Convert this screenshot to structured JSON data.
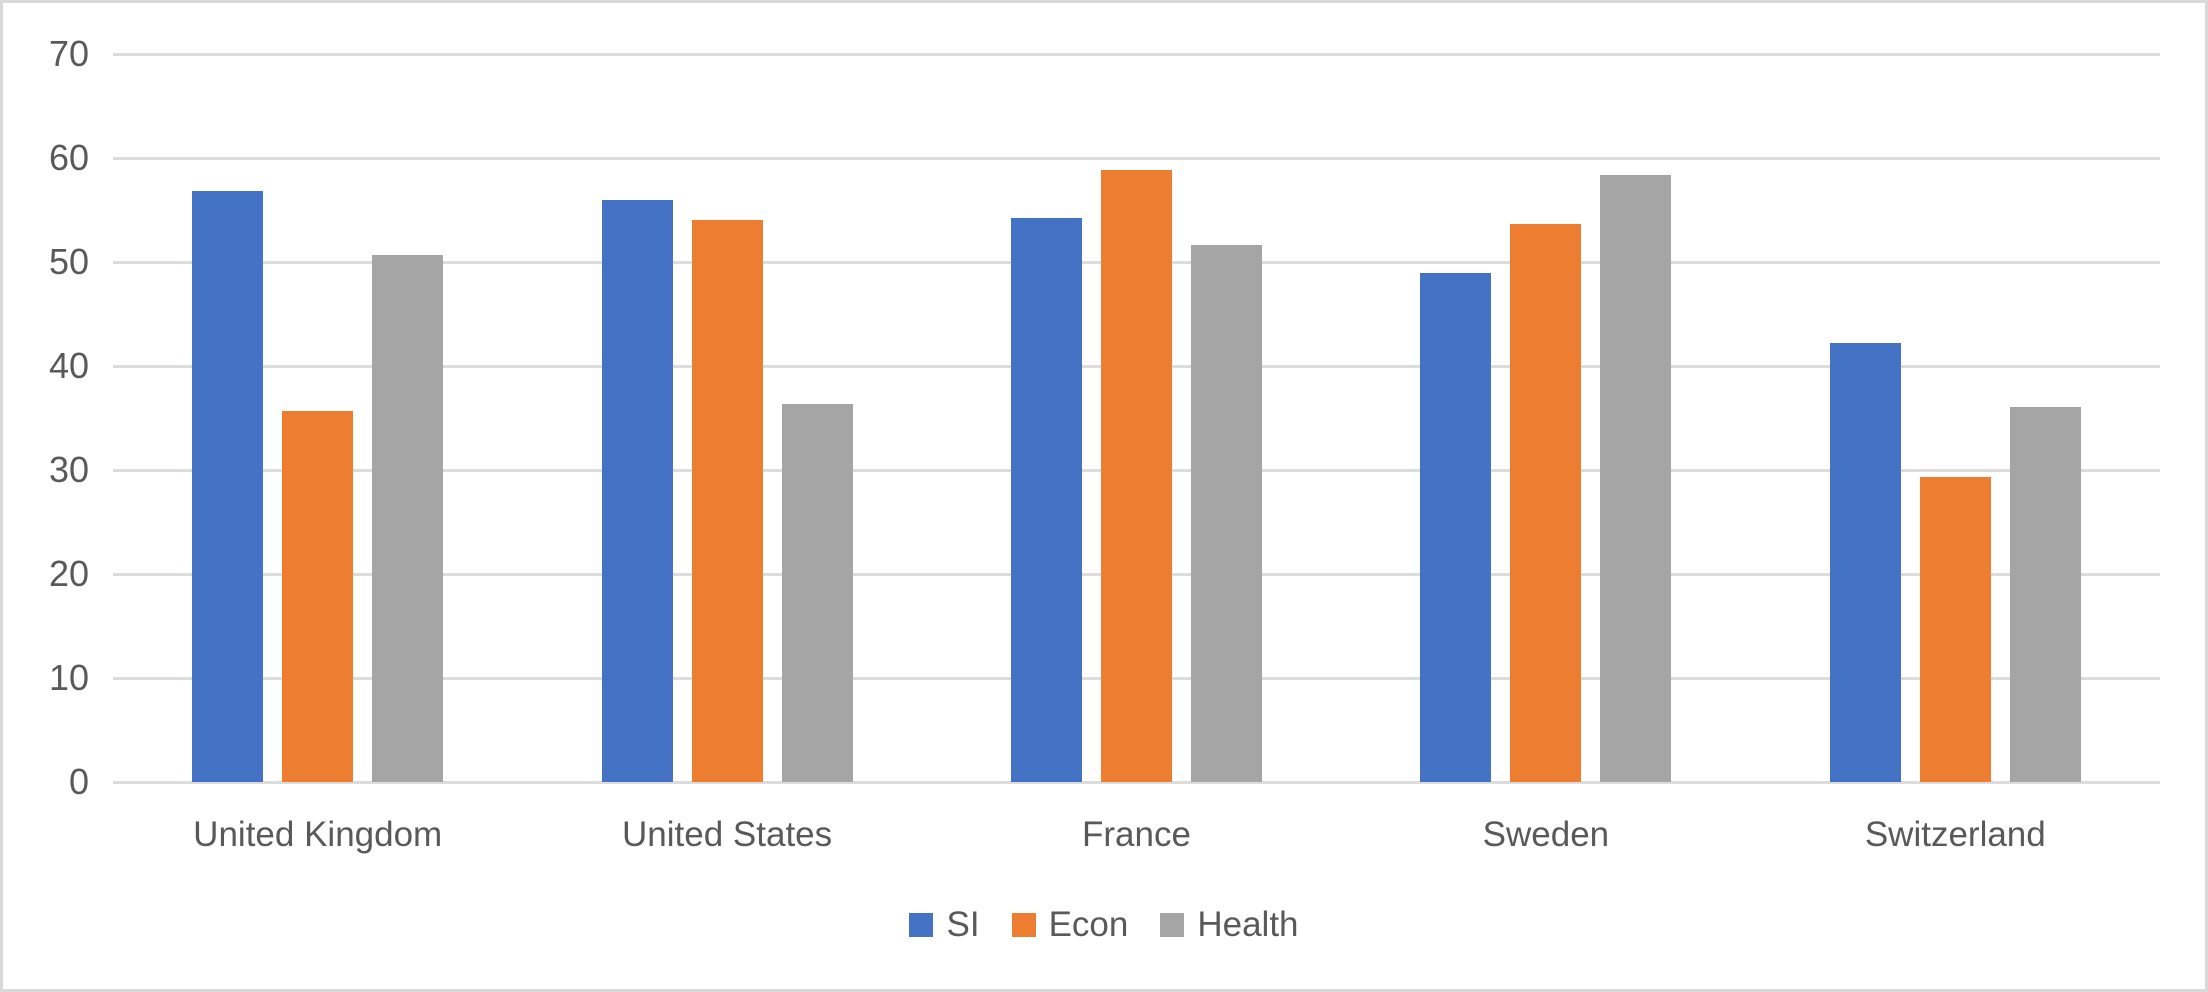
{
  "chart_data": {
    "type": "bar",
    "title": "",
    "xlabel": "",
    "ylabel": "",
    "categories": [
      "United Kingdom",
      "United States",
      "France",
      "Sweden",
      "Switzerland"
    ],
    "series": [
      {
        "name": "SI",
        "color": "#4472C4",
        "values": [
          56.8,
          56.0,
          54.2,
          48.9,
          42.2
        ]
      },
      {
        "name": "Econ",
        "color": "#ED7D31",
        "values": [
          35.7,
          54.0,
          58.8,
          53.7,
          29.3
        ]
      },
      {
        "name": "Health",
        "color": "#A5A5A5",
        "values": [
          50.7,
          36.3,
          51.6,
          58.4,
          36.1
        ]
      }
    ],
    "ylim": [
      0,
      70
    ],
    "yticks": [
      0,
      10,
      20,
      30,
      40,
      50,
      60,
      70
    ],
    "grid": true,
    "legend_position": "bottom",
    "colors": {
      "gridline": "#DCDCDC",
      "axis_text": "#595959",
      "background": "#FFFFFF",
      "border": "#D9D9D9"
    }
  }
}
